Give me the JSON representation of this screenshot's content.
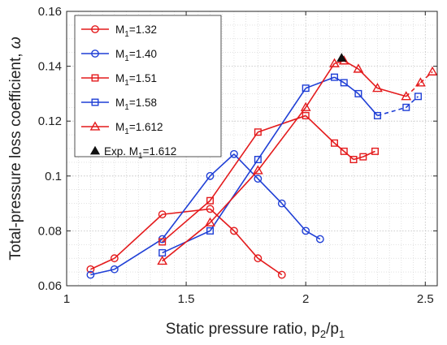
{
  "chart_data": {
    "type": "line",
    "title": "",
    "xlabel": "Static pressure ratio, p_2/p_1",
    "ylabel": "Total-pressure loss coefficient, ω",
    "xlim": [
      1,
      2.55
    ],
    "ylim": [
      0.06,
      0.16
    ],
    "xticks": [
      1,
      1.5,
      2,
      2.5
    ],
    "xtick_labels": [
      "1",
      "1.5",
      "2",
      "2.5"
    ],
    "yticks": [
      0.06,
      0.08,
      0.1,
      0.12,
      0.14,
      0.16
    ],
    "ytick_labels": [
      "0.06",
      "0.08",
      "0.1",
      "0.12",
      "0.14",
      "0.16"
    ],
    "grid": true,
    "minor_grid": true,
    "legend_position": "top-left",
    "series": [
      {
        "name": "M1=1.32",
        "name_main": "M",
        "name_sub": "1",
        "name_rest": "=1.32",
        "color": "#e41a1c",
        "marker": "circle",
        "x": [
          1.1,
          1.2,
          1.4,
          1.6,
          1.7,
          1.8,
          1.9
        ],
        "y": [
          0.066,
          0.07,
          0.086,
          0.088,
          0.08,
          0.07,
          0.064
        ]
      },
      {
        "name": "M1=1.40",
        "name_main": "M",
        "name_sub": "1",
        "name_rest": "=1.40",
        "color": "#1f3fd6",
        "marker": "circle",
        "x": [
          1.1,
          1.2,
          1.4,
          1.6,
          1.7,
          1.8,
          1.9,
          2.0,
          2.06
        ],
        "y": [
          0.064,
          0.066,
          0.077,
          0.1,
          0.108,
          0.099,
          0.09,
          0.08,
          0.077
        ]
      },
      {
        "name": "M1=1.51",
        "name_main": "M",
        "name_sub": "1",
        "name_rest": "=1.51",
        "color": "#e41a1c",
        "marker": "square",
        "x": [
          1.4,
          1.6,
          1.8,
          2.0,
          2.12,
          2.16,
          2.2,
          2.24,
          2.29
        ],
        "y": [
          0.076,
          0.091,
          0.116,
          0.122,
          0.112,
          0.109,
          0.106,
          0.107,
          0.109
        ]
      },
      {
        "name": "M1=1.58",
        "name_main": "M",
        "name_sub": "1",
        "name_rest": "=1.58",
        "color": "#1f3fd6",
        "marker": "square",
        "x": [
          1.4,
          1.6,
          1.8,
          2.0,
          2.12,
          2.16,
          2.22,
          2.3,
          2.42,
          2.47
        ],
        "y": [
          0.072,
          0.08,
          0.106,
          0.132,
          0.136,
          0.134,
          0.13,
          0.122,
          0.125,
          0.129
        ],
        "dashed_from_index": 7
      },
      {
        "name": "M1=1.612",
        "name_main": "M",
        "name_sub": "1",
        "name_rest": "=1.612",
        "color": "#e41a1c",
        "marker": "triangle",
        "x": [
          1.4,
          1.6,
          1.8,
          2.0,
          2.12,
          2.16,
          2.22,
          2.3,
          2.42,
          2.48,
          2.53
        ],
        "y": [
          0.069,
          0.083,
          0.102,
          0.125,
          0.141,
          0.142,
          0.139,
          0.132,
          0.129,
          0.134,
          0.138
        ],
        "dashed_from_index": 8
      }
    ],
    "experimental": {
      "name": "Exp. M1=1.612",
      "name_main": "Exp. M",
      "name_sub": "1",
      "name_rest": "=1.612",
      "color": "#111111",
      "marker": "triangle-filled",
      "x": [
        2.15
      ],
      "y": [
        0.143
      ]
    }
  }
}
